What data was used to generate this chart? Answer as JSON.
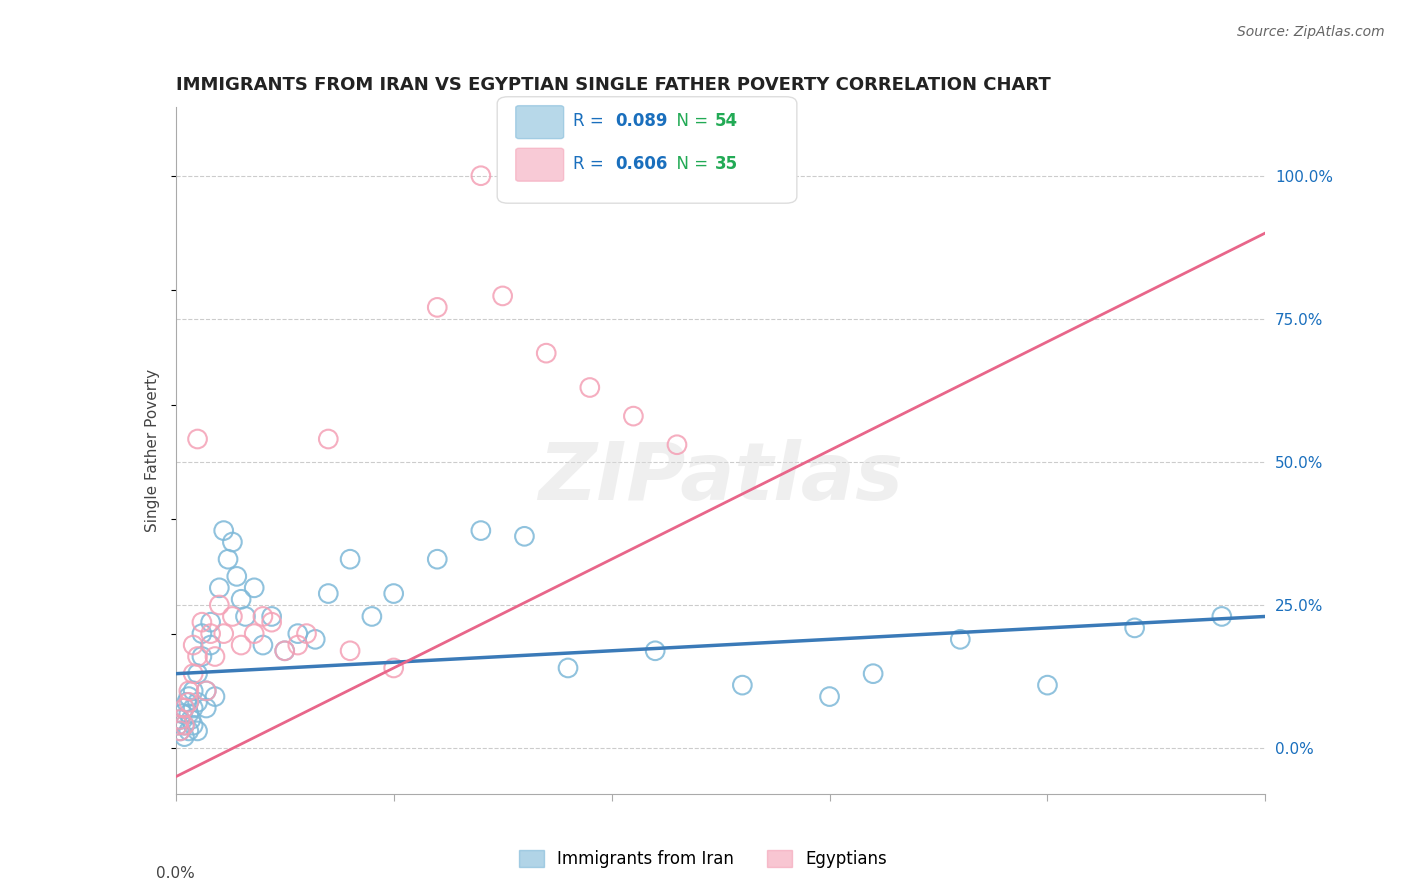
{
  "title": "IMMIGRANTS FROM IRAN VS EGYPTIAN SINGLE FATHER POVERTY CORRELATION CHART",
  "source": "Source: ZipAtlas.com",
  "ylabel": "Single Father Poverty",
  "ylabel_right_ticks": [
    "0.0%",
    "25.0%",
    "50.0%",
    "75.0%",
    "100.0%"
  ],
  "ylabel_right_vals": [
    0.0,
    0.25,
    0.5,
    0.75,
    1.0
  ],
  "xlim": [
    0.0,
    0.25
  ],
  "ylim": [
    -0.08,
    1.12
  ],
  "blue_R": "0.089",
  "blue_N": "54",
  "pink_R": "0.606",
  "pink_N": "35",
  "blue_color": "#7db8d8",
  "pink_color": "#f4a0b5",
  "blue_line_color": "#3a7ab8",
  "pink_line_color": "#e8668a",
  "legend_R_color": "#1a6fbd",
  "legend_N_color": "#22aa55",
  "watermark": "ZIPatlas",
  "title_color": "#222222",
  "title_fontsize": 13,
  "blue_scatter_x": [
    0.0005,
    0.001,
    0.001,
    0.0015,
    0.002,
    0.002,
    0.002,
    0.0025,
    0.003,
    0.003,
    0.003,
    0.0035,
    0.004,
    0.004,
    0.004,
    0.005,
    0.005,
    0.005,
    0.006,
    0.006,
    0.007,
    0.007,
    0.008,
    0.008,
    0.009,
    0.01,
    0.011,
    0.012,
    0.013,
    0.014,
    0.015,
    0.016,
    0.018,
    0.02,
    0.022,
    0.025,
    0.028,
    0.032,
    0.035,
    0.04,
    0.045,
    0.05,
    0.06,
    0.07,
    0.08,
    0.09,
    0.11,
    0.13,
    0.15,
    0.16,
    0.18,
    0.2,
    0.22,
    0.24
  ],
  "blue_scatter_y": [
    0.04,
    0.05,
    0.03,
    0.06,
    0.07,
    0.04,
    0.02,
    0.08,
    0.06,
    0.03,
    0.09,
    0.05,
    0.1,
    0.04,
    0.07,
    0.13,
    0.08,
    0.03,
    0.16,
    0.2,
    0.1,
    0.07,
    0.22,
    0.18,
    0.09,
    0.28,
    0.38,
    0.33,
    0.36,
    0.3,
    0.26,
    0.23,
    0.28,
    0.18,
    0.23,
    0.17,
    0.2,
    0.19,
    0.27,
    0.33,
    0.23,
    0.27,
    0.33,
    0.38,
    0.37,
    0.14,
    0.17,
    0.11,
    0.09,
    0.13,
    0.19,
    0.11,
    0.21,
    0.23
  ],
  "pink_scatter_x": [
    0.0005,
    0.001,
    0.001,
    0.002,
    0.002,
    0.003,
    0.003,
    0.004,
    0.004,
    0.005,
    0.005,
    0.006,
    0.007,
    0.008,
    0.009,
    0.01,
    0.011,
    0.013,
    0.015,
    0.018,
    0.02,
    0.022,
    0.025,
    0.028,
    0.03,
    0.035,
    0.04,
    0.05,
    0.06,
    0.07,
    0.075,
    0.085,
    0.095,
    0.105,
    0.115
  ],
  "pink_scatter_y": [
    0.04,
    0.05,
    0.03,
    0.07,
    0.04,
    0.1,
    0.08,
    0.13,
    0.18,
    0.54,
    0.16,
    0.22,
    0.1,
    0.2,
    0.16,
    0.25,
    0.2,
    0.23,
    0.18,
    0.2,
    0.23,
    0.22,
    0.17,
    0.18,
    0.2,
    0.54,
    0.17,
    0.14,
    0.77,
    1.0,
    0.79,
    0.69,
    0.63,
    0.58,
    0.53
  ],
  "blue_line_x": [
    0.0,
    0.25
  ],
  "blue_line_y": [
    0.13,
    0.23
  ],
  "pink_line_x": [
    0.0,
    0.25
  ],
  "pink_line_y": [
    -0.05,
    0.9
  ]
}
